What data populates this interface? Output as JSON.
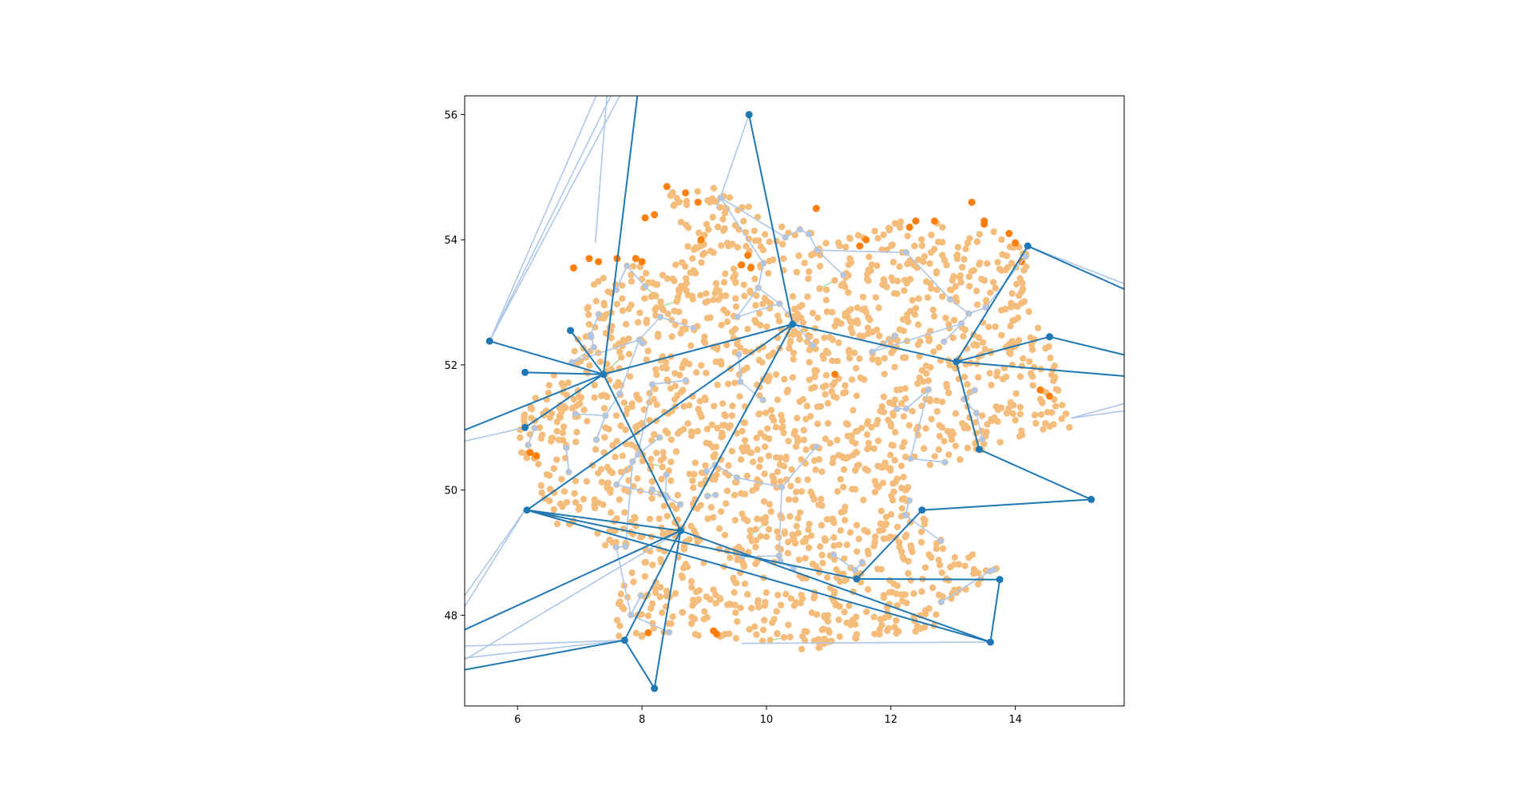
{
  "chart_data": {
    "type": "scatter",
    "title": "",
    "xlabel": "",
    "ylabel": "",
    "xlim": [
      5.15,
      15.75
    ],
    "ylim": [
      46.55,
      56.3
    ],
    "xticks": [
      6,
      8,
      10,
      12,
      14
    ],
    "yticks": [
      48,
      50,
      52,
      54,
      56
    ],
    "grid": false,
    "legend": "none",
    "colors": {
      "bus_fill": "#f5bd7c",
      "bus_highlight": "#ff7f0e",
      "distribution_lines": "#98df8a",
      "transmission_lines": "#aec7e8",
      "hub_lines": "#1f77b4",
      "hub_nodes": "#1f77b4",
      "frame": "#000000"
    },
    "hub_nodes": [
      {
        "x": 9.72,
        "y": 56.0
      },
      {
        "x": 5.55,
        "y": 52.38
      },
      {
        "x": 7.38,
        "y": 51.85
      },
      {
        "x": 10.42,
        "y": 52.65
      },
      {
        "x": 13.05,
        "y": 52.05
      },
      {
        "x": 14.55,
        "y": 52.45
      },
      {
        "x": 14.2,
        "y": 53.9
      },
      {
        "x": 13.42,
        "y": 50.65
      },
      {
        "x": 15.22,
        "y": 49.85
      },
      {
        "x": 12.5,
        "y": 49.68
      },
      {
        "x": 8.62,
        "y": 49.35
      },
      {
        "x": 6.15,
        "y": 49.68
      },
      {
        "x": 11.45,
        "y": 48.58
      },
      {
        "x": 13.75,
        "y": 48.57
      },
      {
        "x": 13.6,
        "y": 47.57
      },
      {
        "x": 7.72,
        "y": 47.6
      },
      {
        "x": 8.2,
        "y": 46.83
      },
      {
        "x": 6.85,
        "y": 52.55
      },
      {
        "x": 6.12,
        "y": 51.88
      },
      {
        "x": 6.12,
        "y": 51.0
      }
    ],
    "hub_links": [
      [
        1,
        2
      ],
      [
        2,
        3
      ],
      [
        3,
        4
      ],
      [
        4,
        6
      ],
      [
        4,
        5
      ],
      [
        4,
        7
      ],
      [
        7,
        8
      ],
      [
        3,
        10
      ],
      [
        2,
        10
      ],
      [
        3,
        11
      ],
      [
        11,
        12
      ],
      [
        11,
        14
      ],
      [
        10,
        14
      ],
      [
        10,
        11
      ],
      [
        12,
        9
      ],
      [
        12,
        13
      ],
      [
        13,
        14
      ],
      [
        10,
        15
      ],
      [
        10,
        16
      ],
      [
        15,
        16
      ],
      [
        0,
        3
      ],
      [
        2,
        17
      ],
      [
        2,
        18
      ],
      [
        2,
        19
      ],
      [
        8,
        9
      ]
    ],
    "offframe_links": [
      {
        "from": 2,
        "to_x": 7.95,
        "to_y": 56.5
      },
      {
        "from": 2,
        "to_x": 5.0,
        "to_y": 50.9
      },
      {
        "from": 10,
        "to_x": 5.0,
        "to_y": 47.7
      },
      {
        "from": 15,
        "to_x": 5.0,
        "to_y": 47.1
      },
      {
        "from": 6,
        "to_x": 16.0,
        "to_y": 53.1
      },
      {
        "from": 4,
        "to_x": 16.0,
        "to_y": 51.8
      },
      {
        "from": 5,
        "to_x": 16.0,
        "to_y": 52.1
      }
    ]
  }
}
